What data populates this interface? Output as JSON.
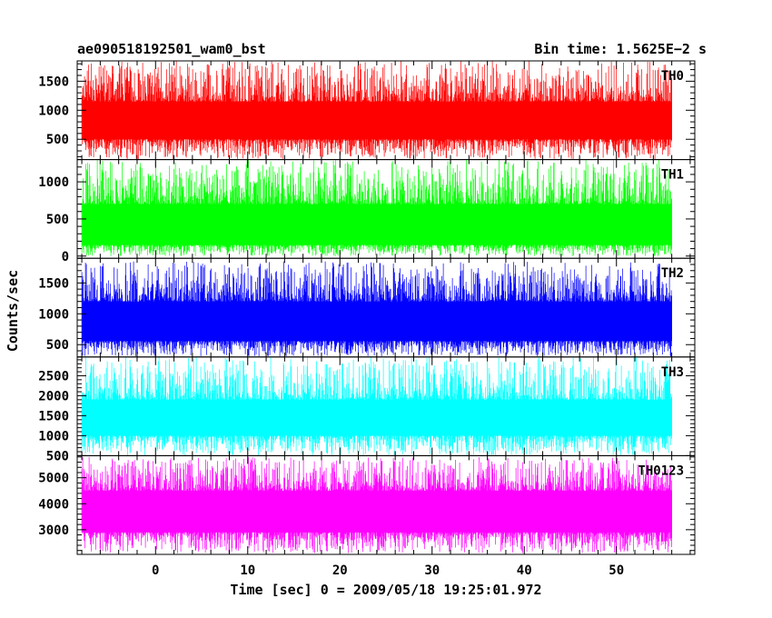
{
  "chart_data": {
    "type": "line",
    "title": "ae090518192501_wam0_bst",
    "subtitle": "Bin time: 1.5625E−2 s",
    "xlabel": "Time [sec] 0 = 2009/05/18 19:25:01.972",
    "ylabel": "Counts/sec",
    "xlim": [
      -8.5,
      58.5
    ],
    "data_xrange": [
      -8.0,
      56.0
    ],
    "x_ticks": [
      "0",
      "10",
      "20",
      "30",
      "40",
      "50"
    ],
    "x_tick_values": [
      0,
      10,
      20,
      30,
      40,
      50
    ],
    "grid": false,
    "panels": [
      {
        "name": "TH0",
        "color": "#ff0000",
        "ylim": [
          150,
          1850
        ],
        "y_ticks": [
          "500",
          "1000",
          "1500"
        ],
        "y_tick_values": [
          500,
          1000,
          1500
        ],
        "band": [
          160,
          1850
        ],
        "core": [
          500,
          1150
        ]
      },
      {
        "name": "TH1",
        "color": "#00ff00",
        "ylim": [
          -30,
          1300
        ],
        "y_ticks": [
          "0",
          "500",
          "1000"
        ],
        "y_tick_values": [
          0,
          500,
          1000
        ],
        "band": [
          0,
          1300
        ],
        "core": [
          150,
          700
        ]
      },
      {
        "name": "TH2",
        "color": "#0000ff",
        "ylim": [
          300,
          1900
        ],
        "y_ticks": [
          "500",
          "1000",
          "1500"
        ],
        "y_tick_values": [
          500,
          1000,
          1500
        ],
        "band": [
          310,
          1850
        ],
        "core": [
          560,
          1200
        ]
      },
      {
        "name": "TH3",
        "color": "#00ffff",
        "ylim": [
          500,
          2970
        ],
        "y_ticks": [
          "500",
          "1000",
          "1500",
          "2000",
          "2500"
        ],
        "y_tick_values": [
          500,
          1000,
          1500,
          2000,
          2500
        ],
        "band": [
          510,
          2970
        ],
        "core": [
          1000,
          1900
        ]
      },
      {
        "name": "TH0123",
        "color": "#ff00ff",
        "ylim": [
          2050,
          5850
        ],
        "y_ticks": [
          "3000",
          "4000",
          "5000"
        ],
        "y_tick_values": [
          3000,
          4000,
          5000
        ],
        "band": [
          2100,
          5800
        ],
        "core": [
          2900,
          4500
        ]
      }
    ]
  }
}
